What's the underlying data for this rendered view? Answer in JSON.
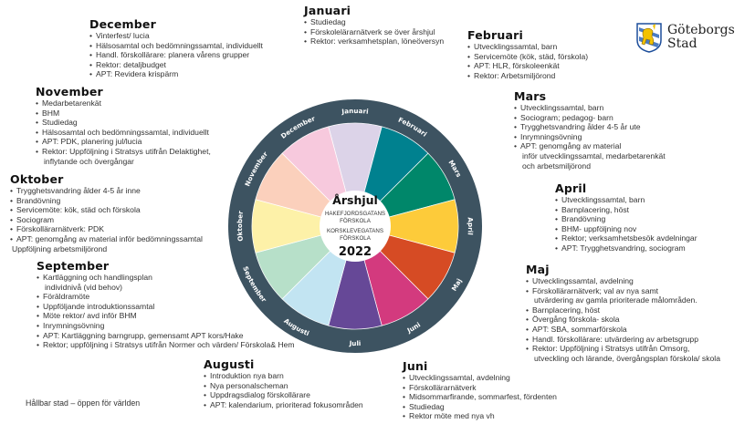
{
  "title": "Årshjul",
  "center": {
    "title": "Årshjul",
    "school1_line1": "HAKEFJORDSGATANS",
    "school1_line2": "FÖRSKOLA",
    "school2_line1": "KORSKLEVEGATANS",
    "school2_line2": "FÖRSKOLA",
    "year": "2022"
  },
  "logo": {
    "line1": "Göteborgs",
    "line2": "Stad",
    "icon": "coat-of-arms-lion-icon"
  },
  "footer": "Hållbar stad – öppen för världen",
  "wheel": {
    "ring_color": "#3d5361",
    "segments": [
      {
        "label": "Januari",
        "color": "#dcd3e8"
      },
      {
        "label": "Februari",
        "color": "#00818f"
      },
      {
        "label": "Mars",
        "color": "#00876a"
      },
      {
        "label": "April",
        "color": "#fdcb3a"
      },
      {
        "label": "Maj",
        "color": "#d64b24"
      },
      {
        "label": "Juni",
        "color": "#d33a7e"
      },
      {
        "label": "Juli",
        "color": "#664897"
      },
      {
        "label": "Augusti",
        "color": "#c2e4f2"
      },
      {
        "label": "September",
        "color": "#b7e0c9"
      },
      {
        "label": "Oktober",
        "color": "#fdf1a8"
      },
      {
        "label": "November",
        "color": "#fbd0bc"
      },
      {
        "label": "December",
        "color": "#f7c9dd"
      }
    ]
  },
  "months": {
    "januari": {
      "title": "Januari",
      "items": [
        "Studiedag",
        "Förskolelärarnätverk se över årshjul",
        "Rektor: verksamhetsplan, löneöversyn"
      ]
    },
    "februari": {
      "title": "Februari",
      "items": [
        "Utvecklingssamtal, barn",
        "Servicemöte (kök, städ, förskola)",
        "APT: HLR, förskoleenkät",
        "Rektor: Arbetsmiljörond"
      ]
    },
    "mars": {
      "title": "Mars",
      "items": [
        "Utvecklingssamtal, barn",
        "Sociogram; pedagog- barn",
        "Trygghetsvandring ålder 4-5 år ute",
        "Inrymningsövning",
        "APT: genomgång av material"
      ],
      "cont": [
        "inför utvecklingssamtal, medarbetarenkät",
        "och arbetsmiljörond"
      ]
    },
    "april": {
      "title": "April",
      "items": [
        "Utvecklingssamtal, barn",
        "Barnplacering, höst",
        "Brandövning",
        "BHM- uppföljning nov",
        "Rektor; verksamhetsbesök avdelningar",
        "APT: Trygghetsvandring, sociogram"
      ]
    },
    "maj": {
      "title": "Maj",
      "items": [
        "Utvecklingssamtal, avdelning",
        "Förskollärarnätverk; val av nya samt",
        "Barnplacering, höst",
        "Övergång förskola- skola",
        "APT: SBA, sommarförskola",
        "Handl. förskollärare: utvärdering av arbetsgrupp",
        "Rektor: Uppföljning i Stratsys utifrån Omsorg,"
      ],
      "cont1": "utvärdering av gamla prioriterade målområden.",
      "cont2": "utveckling och lärande, övergångsplan förskola/ skola"
    },
    "juni": {
      "title": "Juni",
      "items": [
        "Utvecklingssamtal, avdelning",
        "Förskollärarnätverk",
        "Midsommarfirande, sommarfest, fördenten",
        "Studiedag",
        "Rektor möte med nya vh"
      ]
    },
    "augusti": {
      "title": "Augusti",
      "items": [
        "Introduktion nya barn",
        "Nya personalscheman",
        "Uppdragsdialog förskollärare",
        "APT: kalendarium, prioriterad fokusområden"
      ]
    },
    "september": {
      "title": "September",
      "items": [
        "Kartläggning och handlingsplan",
        "Föräldramöte",
        "Uppföljande introduktionssamtal",
        "Möte rektor/ avd inför BHM",
        "Inrymningsövning",
        "APT: Kartläggning barngrupp, gemensamt APT kors/Hake",
        "Rektor; uppföljning i Stratsys utifrån Normer och värden/ Förskola& Hem"
      ],
      "cont": "individnivå (vid behov)"
    },
    "oktober": {
      "title": "Oktober",
      "items": [
        "Trygghetsvandring ålder 4-5 år inne",
        "Brandövning",
        "Servicemöte: kök, städ och förskola",
        "Sociogram",
        "Förskollärarnätverk: PDK",
        "APT: genomgång av material inför bedömningssamtal"
      ],
      "cont": "Uppföljning arbetsmiljörond"
    },
    "november": {
      "title": "November",
      "items": [
        "Medarbetarenkät",
        "BHM",
        "Studiedag",
        "Hälsosamtal och bedömningssamtal, individuellt",
        "APT: PDK, planering jul/lucia",
        "Rektor: Uppföljning i Stratsys utifrån Delaktighet,"
      ],
      "cont": "inflytande och övergångar"
    },
    "december": {
      "title": "December",
      "items": [
        "Vinterfest/ lucia",
        "Hälsosamtal och bedömningssamtal, individuellt",
        "Handl. förskollärare: planera vårens grupper",
        "Rektor: detaljbudget",
        "APT: Revidera krispärm"
      ]
    }
  }
}
